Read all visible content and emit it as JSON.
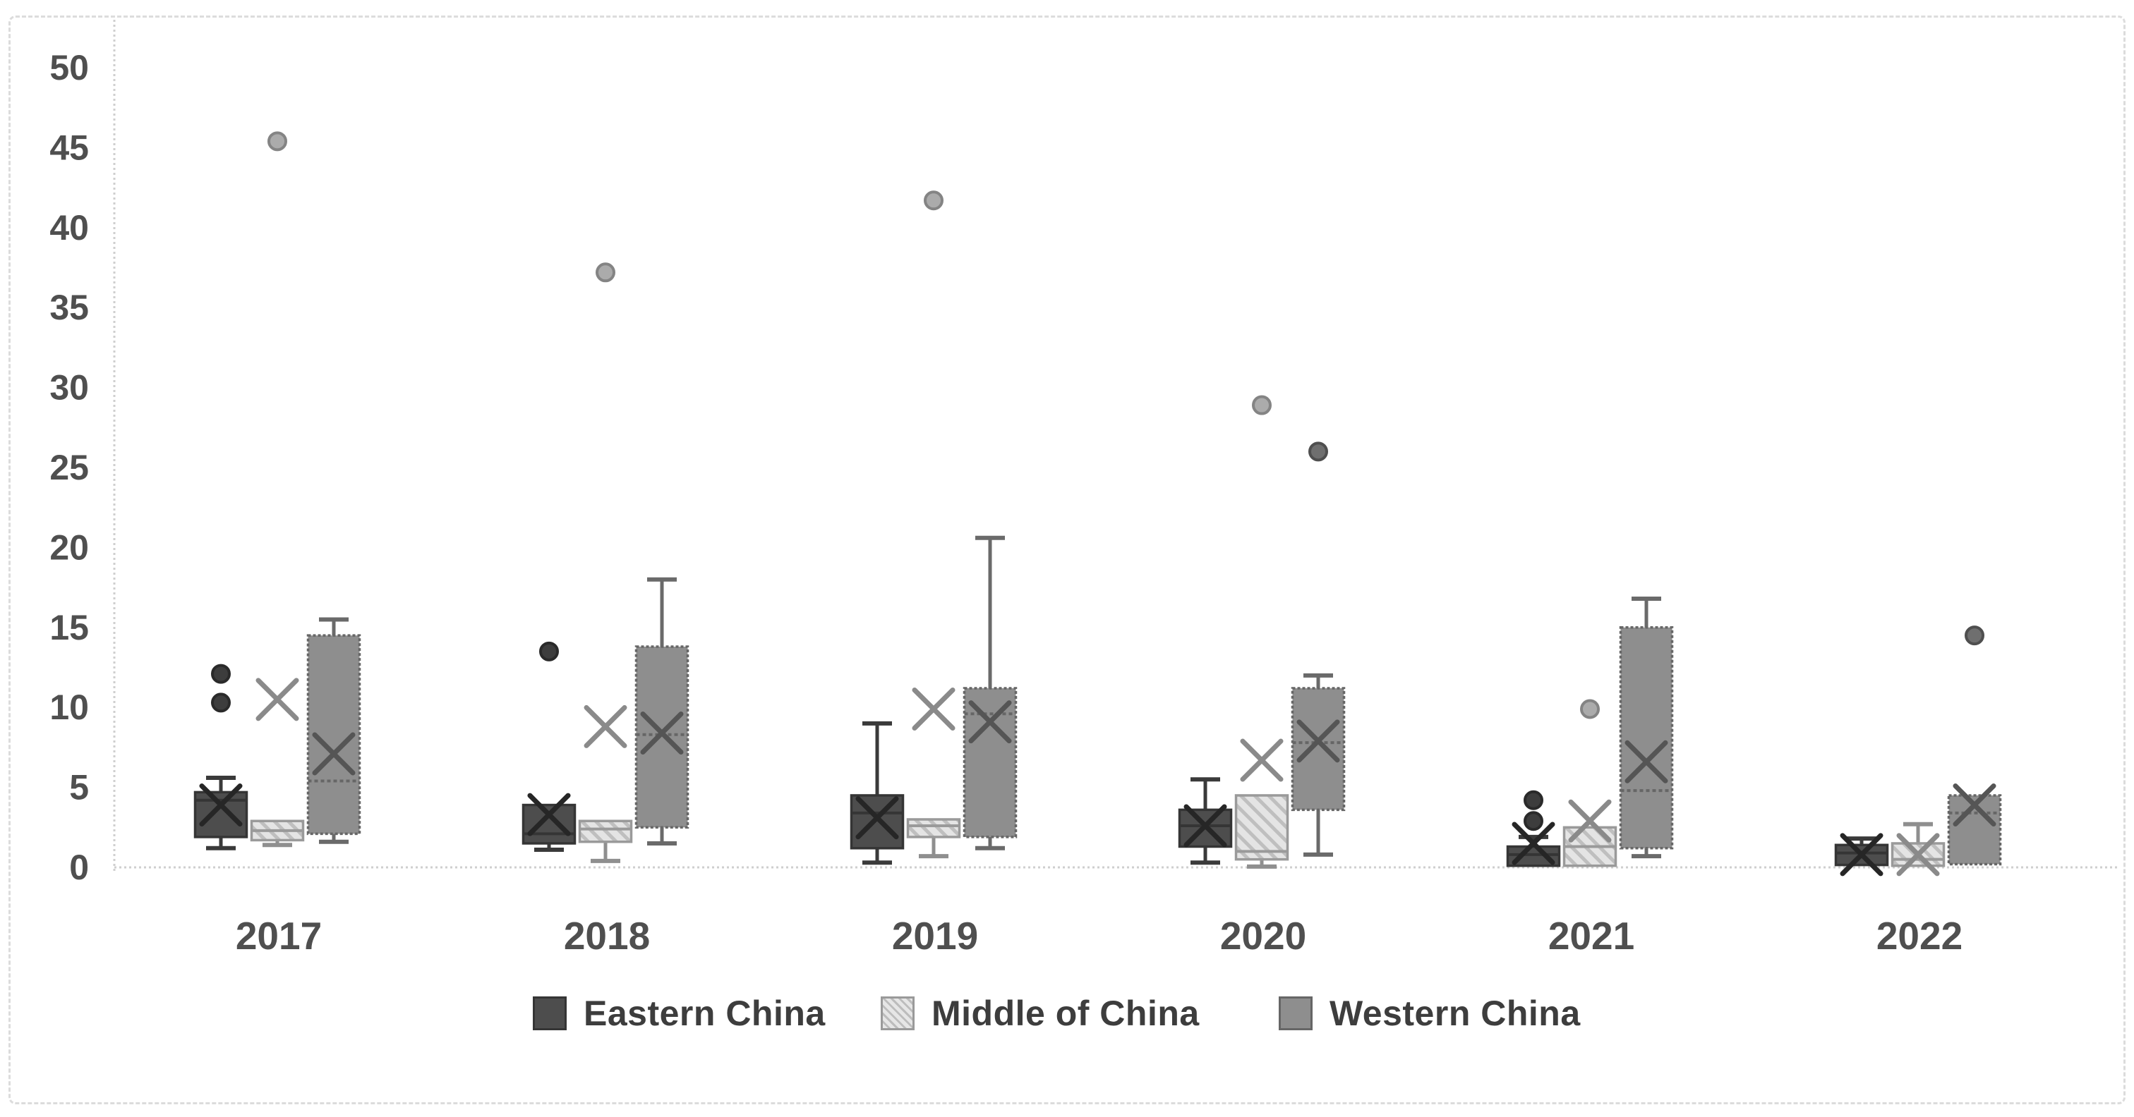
{
  "chart_data": {
    "type": "boxplot",
    "title": "",
    "xlabel": "",
    "ylabel": "",
    "ylim": [
      0,
      50
    ],
    "ytick_step": 5,
    "y_tick_labels": [
      "0",
      "5",
      "10",
      "15",
      "20",
      "25",
      "30",
      "35",
      "40",
      "45",
      "50"
    ],
    "grid": false,
    "legend_position": "bottom",
    "axis_color": "#cfcfcf",
    "tick_label_color": "#4f4f4f",
    "categories": [
      "2017",
      "2018",
      "2019",
      "2020",
      "2021",
      "2022"
    ],
    "series": [
      {
        "name": "Eastern China",
        "fill": "#4d4d4d",
        "stroke": "#353535",
        "pattern": "solid",
        "whisker_color": "#3a3a3a",
        "mean_color": "#262626",
        "outlier_fill": "#3d3d3d",
        "outlier_stroke": "#2a2a2a",
        "boxes": [
          {
            "min": 1.2,
            "q1": 1.9,
            "median": 4.2,
            "q3": 4.7,
            "max": 5.6,
            "mean": 3.9,
            "outliers": [
              10.3,
              12.1
            ]
          },
          {
            "min": 1.1,
            "q1": 1.5,
            "median": 2.1,
            "q3": 3.9,
            "max": 3.9,
            "mean": 3.3,
            "outliers": [
              13.5
            ]
          },
          {
            "min": 0.3,
            "q1": 1.2,
            "median": 3.4,
            "q3": 4.5,
            "max": 9.0,
            "mean": 3.1,
            "outliers": []
          },
          {
            "min": 0.3,
            "q1": 1.3,
            "median": 2.6,
            "q3": 3.6,
            "max": 5.5,
            "mean": 2.6,
            "outliers": []
          },
          {
            "min": 0.1,
            "q1": 0.1,
            "median": 0.8,
            "q3": 1.3,
            "max": 1.9,
            "mean": 1.5,
            "outliers": [
              2.9,
              4.2
            ]
          },
          {
            "min": 0.15,
            "q1": 0.15,
            "median": 0.9,
            "q3": 1.4,
            "max": 1.8,
            "mean": 0.8,
            "outliers": []
          }
        ]
      },
      {
        "name": "Middle of China",
        "fill": "pattern",
        "stroke": "#9a9a9a",
        "pattern": "diagonal-hatch",
        "whisker_color": "#8f8f8f",
        "mean_color": "#8a8a8a",
        "outlier_fill": "#ababab",
        "outlier_stroke": "#848484",
        "boxes": [
          {
            "min": 1.4,
            "q1": 1.7,
            "median": 2.3,
            "q3": 2.9,
            "max": 2.9,
            "mean": 10.5,
            "outliers": [
              45.4
            ]
          },
          {
            "min": 0.4,
            "q1": 1.6,
            "median": 2.4,
            "q3": 2.9,
            "max": 2.9,
            "mean": 8.8,
            "outliers": [
              37.2
            ]
          },
          {
            "min": 0.7,
            "q1": 1.9,
            "median": 2.6,
            "q3": 3.0,
            "max": 3.0,
            "mean": 9.9,
            "outliers": [
              41.7
            ]
          },
          {
            "min": 0.05,
            "q1": 0.5,
            "median": 1.0,
            "q3": 4.5,
            "max": 4.5,
            "mean": 6.7,
            "outliers": [
              28.9
            ]
          },
          {
            "min": 0.1,
            "q1": 0.1,
            "median": 1.3,
            "q3": 2.5,
            "max": 2.5,
            "mean": 2.9,
            "outliers": [
              9.9
            ]
          },
          {
            "min": 0.1,
            "q1": 0.1,
            "median": 0.5,
            "q3": 1.5,
            "max": 2.7,
            "mean": 0.8,
            "outliers": []
          }
        ]
      },
      {
        "name": "Western China",
        "fill": "#8e8e8e",
        "stroke": "#666666",
        "pattern": "solid",
        "whisker_color": "#6a6a6a",
        "mean_color": "#555555",
        "outlier_fill": "#6f6f6f",
        "outlier_stroke": "#4f4f4f",
        "boxes": [
          {
            "min": 1.6,
            "q1": 2.1,
            "median": 5.4,
            "q3": 14.5,
            "max": 15.5,
            "mean": 7.1,
            "outliers": []
          },
          {
            "min": 1.5,
            "q1": 2.5,
            "median": 8.3,
            "q3": 13.8,
            "max": 18.0,
            "mean": 8.4,
            "outliers": []
          },
          {
            "min": 1.2,
            "q1": 1.9,
            "median": 9.6,
            "q3": 11.2,
            "max": 20.6,
            "mean": 9.1,
            "outliers": []
          },
          {
            "min": 0.8,
            "q1": 3.6,
            "median": 7.8,
            "q3": 11.2,
            "max": 12.0,
            "mean": 7.9,
            "outliers": [
              26.0
            ]
          },
          {
            "min": 0.7,
            "q1": 1.2,
            "median": 4.8,
            "q3": 15.0,
            "max": 16.8,
            "mean": 6.6,
            "outliers": []
          },
          {
            "min": 0.1,
            "q1": 0.2,
            "median": 3.4,
            "q3": 4.5,
            "max": 4.7,
            "mean": 3.9,
            "outliers": [
              14.5
            ]
          }
        ]
      }
    ]
  },
  "legend": {
    "items": [
      {
        "label": "Eastern China"
      },
      {
        "label": "Middle of China"
      },
      {
        "label": "Western China"
      }
    ]
  }
}
